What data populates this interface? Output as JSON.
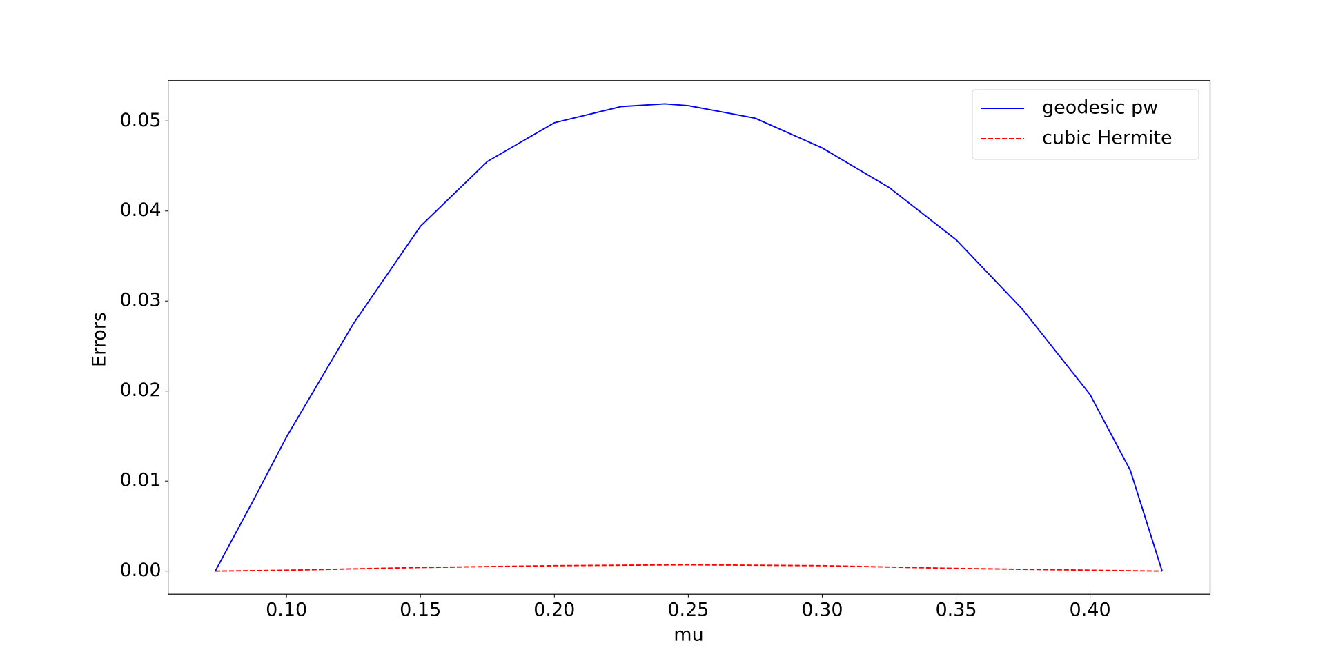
{
  "chart_data": {
    "type": "line",
    "xlabel": "mu",
    "ylabel": "Errors",
    "xlim": [
      0.0558,
      0.4448
    ],
    "ylim": [
      -0.00257,
      0.05448
    ],
    "xticks": [
      {
        "value": 0.1,
        "label": "0.10"
      },
      {
        "value": 0.15,
        "label": "0.15"
      },
      {
        "value": 0.2,
        "label": "0.20"
      },
      {
        "value": 0.25,
        "label": "0.25"
      },
      {
        "value": 0.3,
        "label": "0.30"
      },
      {
        "value": 0.35,
        "label": "0.35"
      },
      {
        "value": 0.4,
        "label": "0.40"
      }
    ],
    "yticks": [
      {
        "value": 0,
        "label": "0.00"
      },
      {
        "value": 0.01,
        "label": "0.01"
      },
      {
        "value": 0.02,
        "label": "0.02"
      },
      {
        "value": 0.03,
        "label": "0.03"
      },
      {
        "value": 0.04,
        "label": "0.04"
      },
      {
        "value": 0.05,
        "label": "0.05"
      }
    ],
    "legend": "upper right",
    "series": [
      {
        "name": "geodesic pw",
        "color": "#0000ff",
        "dash": "solid",
        "x": [
          0.0734,
          0.0875,
          0.1,
          0.125,
          0.15,
          0.175,
          0.2,
          0.225,
          0.2412,
          0.25,
          0.275,
          0.3,
          0.325,
          0.35,
          0.375,
          0.4,
          0.415,
          0.4269
        ],
        "values": [
          0,
          0.0078,
          0.0149,
          0.0275,
          0.0383,
          0.0455,
          0.0498,
          0.0516,
          0.0519,
          0.0517,
          0.0503,
          0.047,
          0.0426,
          0.0368,
          0.029,
          0.0196,
          0.0112,
          0
        ]
      },
      {
        "name": "cubic Hermite",
        "color": "#ff0000",
        "dash": "dashed",
        "x": [
          0.0734,
          0.1,
          0.15,
          0.2,
          0.25,
          0.3,
          0.35,
          0.4,
          0.4269
        ],
        "values": [
          0,
          0.0001,
          0.0004,
          0.0006,
          0.0007,
          0.0006,
          0.0003,
          0.0001,
          0
        ]
      }
    ]
  }
}
